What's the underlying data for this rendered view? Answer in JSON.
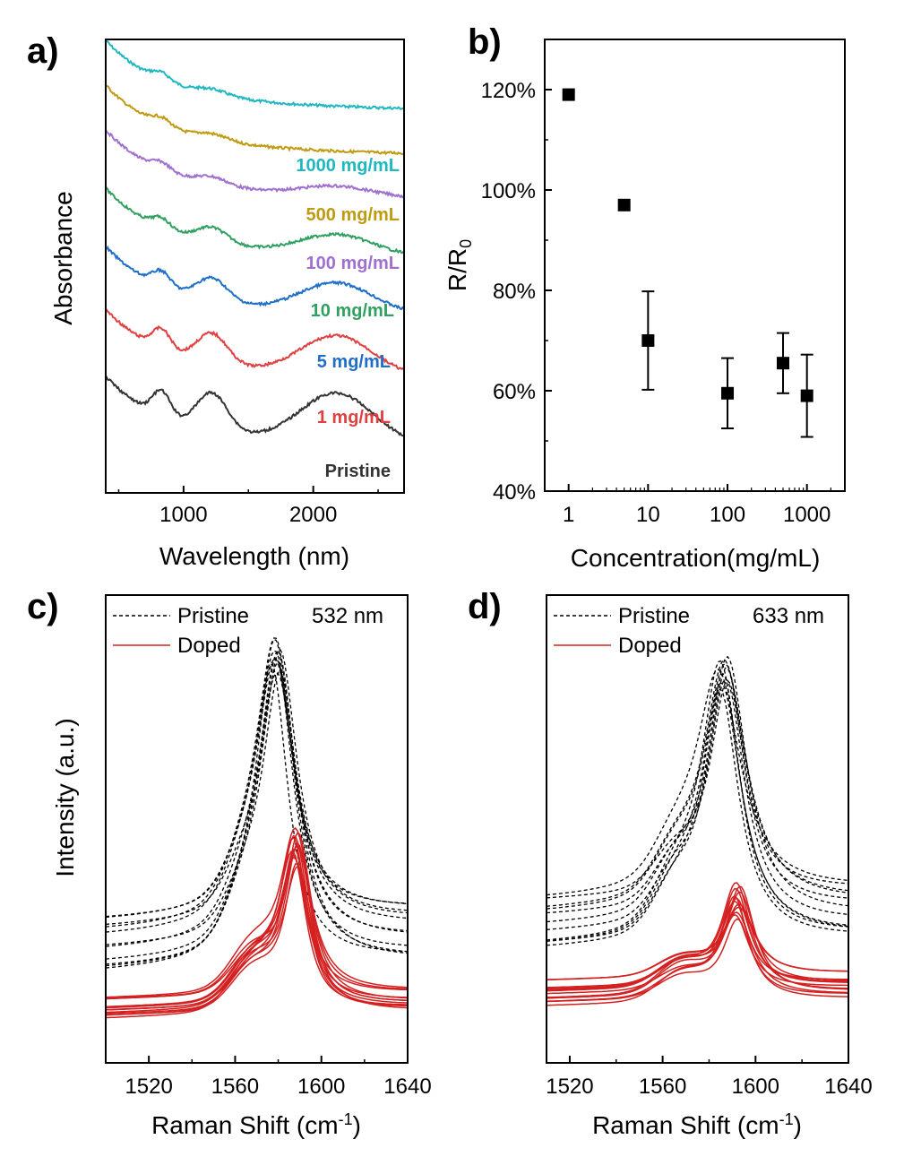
{
  "chart_data": [
    {
      "panel": "a)",
      "type": "line",
      "title": "",
      "xlabel": "Wavelength (nm)",
      "ylabel": "Absorbance",
      "xlim": [
        400,
        2700
      ],
      "xticks": [
        "1000",
        "2000"
      ],
      "yticks": [],
      "series": [
        {
          "name": "1000 mg/mL",
          "color": "#20b8c0",
          "offset": 6
        },
        {
          "name": "500 mg/mL",
          "color": "#c09a10",
          "offset": 5
        },
        {
          "name": "100 mg/mL",
          "color": "#a070d0",
          "offset": 4
        },
        {
          "name": "10 mg/mL",
          "color": "#30a060",
          "offset": 3
        },
        {
          "name": "5 mg/mL",
          "color": "#1f6fc8",
          "offset": 2
        },
        {
          "name": "1 mg/mL",
          "color": "#e04040",
          "offset": 1
        },
        {
          "name": "Pristine",
          "color": "#333333",
          "offset": 0
        }
      ]
    },
    {
      "panel": "b)",
      "type": "scatter",
      "title": "",
      "xlabel": "Concentration(mg/mL)",
      "ylabel_main": "R/R",
      "ylabel_sub": "0",
      "xscale": "log",
      "xlim": [
        0.5,
        3000
      ],
      "ylim": [
        40,
        130
      ],
      "xticks": [
        "1",
        "10",
        "100",
        "1000"
      ],
      "yticks": [
        "40%",
        "60%",
        "80%",
        "100%",
        "120%"
      ],
      "x": [
        1,
        5,
        10,
        100,
        500,
        1000
      ],
      "y": [
        119,
        97,
        70,
        59.5,
        65.5,
        59
      ],
      "yerr": [
        0,
        0,
        9.8,
        7,
        6,
        8.2
      ]
    },
    {
      "panel": "c)",
      "type": "line",
      "title": "532 nm",
      "xlabel_main": "Raman Shift (cm",
      "xlabel_sup": "-1",
      "xlabel_end": ")",
      "ylabel": "Intensity (a.u.)",
      "xlim": [
        1500,
        1640
      ],
      "xticks": [
        "1520",
        "1560",
        "1600",
        "1640"
      ],
      "legend": [
        {
          "label": "Pristine",
          "style": "dashed",
          "color": "#000000"
        },
        {
          "label": "Doped",
          "style": "solid",
          "color": "#d42020"
        }
      ],
      "pristine_peak_cm": 1579,
      "doped_peak_cm": 1588
    },
    {
      "panel": "d)",
      "type": "line",
      "title": "633 nm",
      "xlabel_main": "Raman Shift (cm",
      "xlabel_sup": "-1",
      "xlabel_end": ")",
      "ylabel": "",
      "xlim": [
        1510,
        1640
      ],
      "xticks": [
        "1520",
        "1560",
        "1600",
        "1640"
      ],
      "legend": [
        {
          "label": "Pristine",
          "style": "dashed",
          "color": "#000000"
        },
        {
          "label": "Doped",
          "style": "solid",
          "color": "#d42020"
        }
      ],
      "pristine_peak_cm": 1586,
      "doped_peak_cm": 1592
    }
  ]
}
